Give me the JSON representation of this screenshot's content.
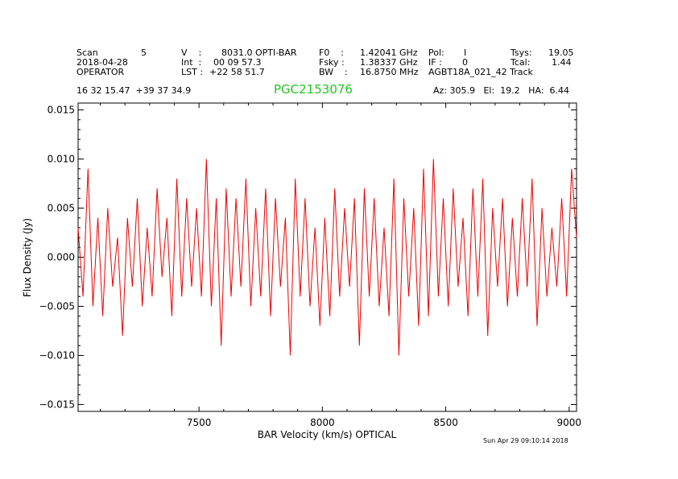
{
  "header": {
    "col1": [
      "Scan",
      "2018-04-28",
      "OPERATOR"
    ],
    "scan_number": "5",
    "col2": [
      "V    :",
      "Int  :",
      "LST :"
    ],
    "col2_values": [
      "8031.0 OPTI-BAR",
      "00 09 57.3",
      "+22 58 51.7"
    ],
    "col3": [
      "F0    :",
      "Fsky :",
      "BW    :"
    ],
    "col3_values": [
      "1.42041 GHz",
      "1.38337 GHz",
      "16.8750 MHz"
    ],
    "col4": [
      "Pol:",
      "IF :",
      "AGBT18A_021_42 Track"
    ],
    "col4_values": [
      "I",
      "0",
      ""
    ],
    "col5": [
      "Tsys:",
      "Tcal:"
    ],
    "col5_values": [
      "19.05",
      "1.44"
    ],
    "coords": "16 32 15.47  +39 37 34.9",
    "object": "PGC2153076",
    "azel": "Az: 305.9   El:  19.2   HA:  6.44"
  },
  "timestamp": "Sun Apr 29 09:10:14 2018",
  "chart_data": {
    "type": "line",
    "xlabel": "BAR Velocity (km/s) OPTICAL",
    "ylabel": "Flux Density (Jy)",
    "xlim": [
      7010,
      9030
    ],
    "ylim": [
      -0.0157,
      0.0157
    ],
    "xticks": [
      7500,
      8000,
      8500,
      9000
    ],
    "xtick_labels": [
      "7500",
      "8000",
      "8500",
      "9000"
    ],
    "yticks": [
      -0.015,
      -0.01,
      -0.005,
      0.0,
      0.005,
      0.01,
      0.015
    ],
    "ytick_labels": [
      "−0.015",
      "−0.010",
      "−0.005",
      "0.000",
      "0.005",
      "0.010",
      "0.015"
    ],
    "grid": false,
    "series": [
      {
        "color": "#ee0000",
        "x": [
          7010,
          7030,
          7050,
          7070,
          7090,
          7110,
          7130,
          7150,
          7170,
          7190,
          7210,
          7230,
          7250,
          7270,
          7290,
          7310,
          7330,
          7350,
          7370,
          7390,
          7410,
          7430,
          7450,
          7470,
          7490,
          7510,
          7530,
          7550,
          7570,
          7590,
          7610,
          7630,
          7650,
          7670,
          7690,
          7710,
          7730,
          7750,
          7770,
          7790,
          7810,
          7830,
          7850,
          7870,
          7890,
          7910,
          7930,
          7950,
          7970,
          7990,
          8010,
          8030,
          8050,
          8070,
          8090,
          8110,
          8130,
          8150,
          8170,
          8190,
          8210,
          8230,
          8250,
          8270,
          8290,
          8310,
          8330,
          8350,
          8370,
          8390,
          8410,
          8430,
          8450,
          8470,
          8490,
          8510,
          8530,
          8550,
          8570,
          8590,
          8610,
          8630,
          8650,
          8670,
          8690,
          8710,
          8730,
          8750,
          8770,
          8790,
          8810,
          8830,
          8850,
          8870,
          8890,
          8910,
          8930,
          8950,
          8970,
          8990,
          9010,
          9030
        ],
        "y": [
          0.003,
          -0.004,
          0.009,
          -0.005,
          0.004,
          -0.006,
          0.005,
          -0.003,
          0.002,
          -0.008,
          0.004,
          -0.003,
          0.006,
          -0.005,
          0.003,
          -0.004,
          0.007,
          -0.002,
          0.004,
          -0.006,
          0.008,
          -0.004,
          0.006,
          -0.003,
          0.005,
          -0.004,
          0.01,
          -0.005,
          0.006,
          -0.009,
          0.007,
          -0.004,
          0.006,
          -0.003,
          0.008,
          -0.005,
          0.005,
          -0.004,
          0.007,
          -0.006,
          0.006,
          -0.003,
          0.004,
          -0.01,
          0.008,
          -0.004,
          0.006,
          -0.005,
          0.003,
          -0.007,
          0.004,
          -0.006,
          0.007,
          -0.004,
          0.005,
          -0.003,
          0.006,
          -0.009,
          0.007,
          -0.004,
          0.006,
          -0.005,
          0.003,
          -0.006,
          0.008,
          -0.01,
          0.006,
          -0.004,
          0.005,
          -0.007,
          0.009,
          -0.006,
          0.01,
          -0.004,
          0.006,
          -0.005,
          0.007,
          -0.003,
          0.004,
          -0.006,
          0.007,
          -0.004,
          0.008,
          -0.008,
          0.005,
          -0.003,
          0.006,
          -0.005,
          0.004,
          -0.004,
          0.006,
          -0.003,
          0.008,
          -0.007,
          0.005,
          -0.004,
          0.003,
          -0.003,
          0.006,
          -0.004,
          0.009,
          0.002
        ]
      }
    ]
  }
}
